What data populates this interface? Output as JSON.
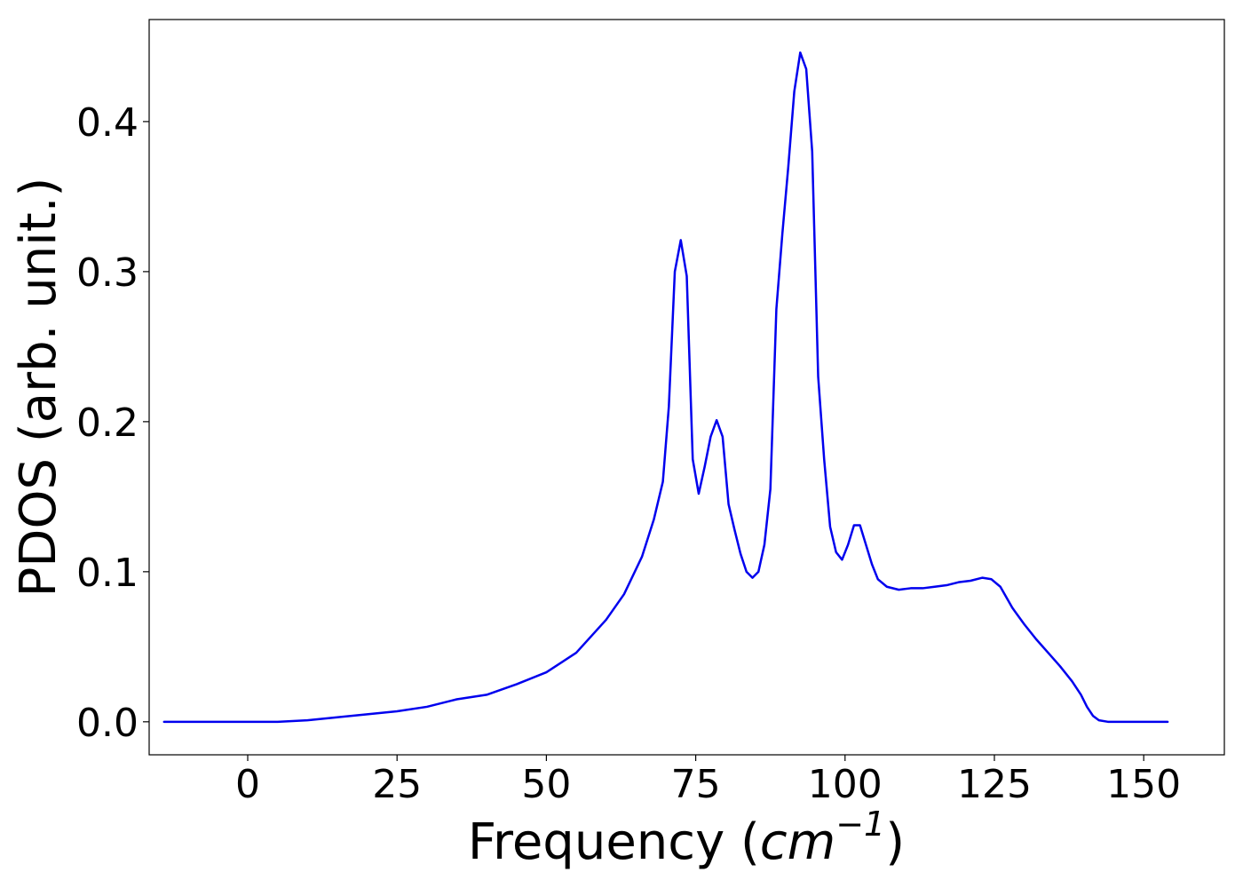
{
  "chart_data": {
    "type": "line",
    "title": "",
    "xlabel": {
      "prefix": "Frequency (",
      "unit_base": "cm",
      "unit_exponent": "−1",
      "suffix": ")"
    },
    "ylabel": "PDOS (arb. unit.)",
    "xlim": [
      -16.5,
      163.5
    ],
    "ylim": [
      -0.022,
      0.468
    ],
    "xticks": [
      0,
      25,
      50,
      75,
      100,
      125,
      150
    ],
    "xtick_labels": [
      "0",
      "25",
      "50",
      "75",
      "100",
      "125",
      "150"
    ],
    "yticks": [
      0.0,
      0.1,
      0.2,
      0.3,
      0.4
    ],
    "ytick_labels": [
      "0.0",
      "0.1",
      "0.2",
      "0.3",
      "0.4"
    ],
    "grid": false,
    "legend": null,
    "series": [
      {
        "color": "#0000ee",
        "x": [
          -14,
          -5,
          0,
          5,
          10,
          15,
          20,
          25,
          30,
          35,
          40,
          45,
          50,
          55,
          60,
          63,
          66,
          68,
          69.5,
          70.5,
          71.5,
          72.5,
          73.5,
          74.5,
          75.5,
          76.5,
          77.5,
          78.5,
          79.5,
          80.5,
          81.5,
          82.5,
          83.5,
          84.5,
          85.5,
          86.5,
          87.5,
          88.5,
          89.5,
          90.5,
          91.5,
          92.5,
          93.5,
          94.5,
          95.5,
          96.5,
          97.5,
          98.5,
          99.5,
          100.5,
          101.5,
          102.5,
          103.5,
          104.5,
          105.5,
          107,
          109,
          111,
          113,
          115,
          117,
          119,
          121,
          123,
          124.5,
          126,
          128,
          130,
          132,
          134,
          136,
          138,
          139.5,
          140.5,
          141.5,
          142.5,
          144,
          150,
          154
        ],
        "y": [
          0,
          0,
          0,
          0,
          0.001,
          0.003,
          0.005,
          0.007,
          0.01,
          0.015,
          0.018,
          0.025,
          0.033,
          0.046,
          0.068,
          0.085,
          0.11,
          0.135,
          0.16,
          0.21,
          0.3,
          0.321,
          0.297,
          0.175,
          0.152,
          0.17,
          0.19,
          0.201,
          0.19,
          0.145,
          0.128,
          0.112,
          0.1,
          0.096,
          0.1,
          0.118,
          0.155,
          0.275,
          0.325,
          0.37,
          0.42,
          0.446,
          0.435,
          0.38,
          0.23,
          0.175,
          0.13,
          0.113,
          0.108,
          0.118,
          0.131,
          0.131,
          0.118,
          0.105,
          0.095,
          0.09,
          0.088,
          0.089,
          0.089,
          0.09,
          0.091,
          0.093,
          0.094,
          0.096,
          0.095,
          0.09,
          0.076,
          0.065,
          0.055,
          0.046,
          0.037,
          0.027,
          0.018,
          0.01,
          0.004,
          0.001,
          0,
          0,
          0
        ]
      }
    ]
  }
}
